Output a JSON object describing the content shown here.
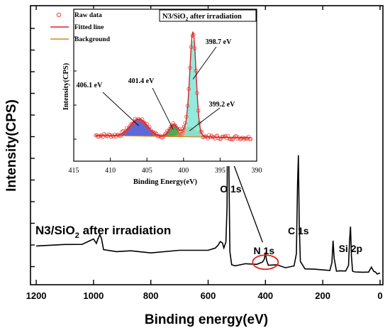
{
  "chart_data": [
    {
      "type": "line",
      "title": "",
      "xlabel": "Binding energy(eV)",
      "ylabel": "Intensity(CPS)",
      "xlim": [
        1220,
        -10
      ],
      "x_reversed": true,
      "x_ticks": [
        1200,
        1000,
        800,
        600,
        400,
        200,
        0
      ],
      "y_ticks_labeled": false,
      "grid": false,
      "annotation_sample": {
        "prefix": "N3/SiO",
        "sub": "2",
        "suffix": " after irradiation"
      },
      "peak_labels": [
        {
          "text": "O 1s",
          "x": 531
        },
        {
          "text": "C 1s",
          "x": 285
        },
        {
          "text": "N 1s",
          "x": 400
        },
        {
          "text": "Si 2p",
          "x": 103
        }
      ],
      "series": [
        {
          "x": [
            1200,
            1100,
            1040,
            1000,
            990,
            985,
            978,
            972,
            965,
            920,
            870,
            800,
            700,
            600,
            575,
            565,
            558,
            550,
            545,
            538,
            534,
            531,
            528,
            524,
            518,
            505,
            470,
            430,
            410,
            404,
            400,
            396,
            390,
            360,
            330,
            300,
            292,
            288,
            285,
            282,
            278,
            262,
            230,
            200,
            175,
            168,
            164,
            160,
            152,
            140,
            120,
            110,
            106,
            103,
            100,
            96,
            88,
            60,
            40,
            30,
            22,
            16,
            10,
            0
          ],
          "y": [
            0.49,
            0.51,
            0.53,
            0.6,
            0.55,
            0.6,
            0.7,
            0.62,
            0.42,
            0.4,
            0.39,
            0.38,
            0.4,
            0.42,
            0.45,
            0.5,
            0.58,
            0.53,
            0.47,
            0.55,
            1.2,
            3.85,
            2.1,
            0.4,
            0.14,
            0.15,
            0.16,
            0.17,
            0.2,
            0.25,
            0.38,
            0.22,
            0.16,
            0.14,
            0.11,
            0.13,
            0.35,
            1.6,
            2.1,
            0.9,
            0.2,
            0.09,
            0.07,
            0.06,
            0.06,
            0.18,
            0.6,
            0.25,
            0.05,
            0.04,
            0.04,
            0.15,
            0.6,
            0.85,
            0.3,
            0.05,
            0.02,
            0.02,
            0.03,
            0.1,
            0.05,
            0.01,
            0.0,
            0.0
          ]
        }
      ],
      "highlight": {
        "shape": "ellipse",
        "x": 400,
        "label": "N 1s"
      }
    },
    {
      "type": "line",
      "title": {
        "prefix": "N3/SiO",
        "sub": "2",
        "suffix": " after irradiation"
      },
      "xlabel": "Binding Energy(eV)",
      "ylabel": "Intensity(CPS)",
      "xlim": [
        415,
        390
      ],
      "x_reversed": true,
      "x_ticks": [
        415,
        410,
        405,
        400,
        395,
        390
      ],
      "legend": [
        {
          "label": "Raw data",
          "style": "open-circle",
          "color": "#e8443a"
        },
        {
          "label": "Fitted line",
          "style": "line",
          "color": "#d9232a"
        },
        {
          "label": "Background",
          "style": "line",
          "color": "#d48a1c"
        }
      ],
      "legend_position": "top-left",
      "background": {
        "x": [
          412,
          390.8
        ],
        "y": [
          0.022,
          0.0
        ]
      },
      "components": [
        {
          "center": 406.1,
          "label": "406.1 eV",
          "amplitude": 0.155,
          "sigma": 1.15,
          "color": "#3f4fd0"
        },
        {
          "center": 401.4,
          "label": "401.4 eV",
          "amplitude": 0.105,
          "sigma": 0.55,
          "color": "#22a23a"
        },
        {
          "center": 399.2,
          "label": "399.2 eV",
          "amplitude": 0.09,
          "sigma": 0.9,
          "color": "#f07a55"
        },
        {
          "center": 398.7,
          "label": "398.7 eV",
          "amplitude": 0.88,
          "sigma": 0.42,
          "color": "#7fe8d6"
        }
      ]
    }
  ]
}
